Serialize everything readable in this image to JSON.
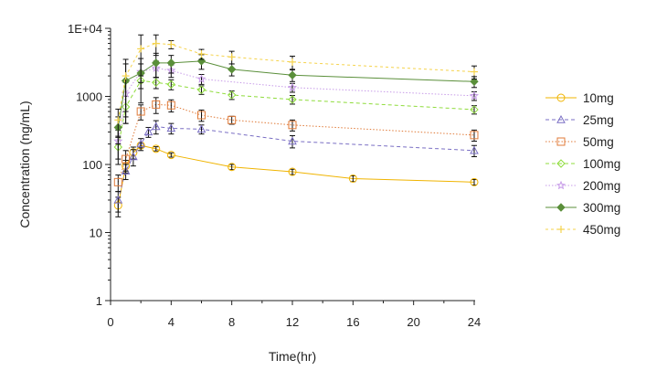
{
  "chart_data": {
    "type": "line",
    "title": "",
    "xlabel": "Time(hr)",
    "ylabel": "Concentration (ng/mL)",
    "xlim": [
      0,
      24
    ],
    "ylim": [
      1,
      10000
    ],
    "yscale": "log",
    "grid": false,
    "legend_position": "right",
    "x_ticks": [
      0,
      4,
      8,
      12,
      16,
      20,
      24
    ],
    "x_tick_labels": [
      "0",
      "4",
      "8",
      "12",
      "16",
      "20",
      "24"
    ],
    "y_ticks": [
      1,
      10,
      100,
      1000,
      10000
    ],
    "y_tick_labels": [
      "1",
      "10",
      "100",
      "1000",
      "1E+04"
    ],
    "series": [
      {
        "name": "10mg",
        "color": "#f0b400",
        "marker": "circle",
        "dash": "solid",
        "x": [
          0.5,
          1,
          1.5,
          2,
          3,
          4,
          8,
          12,
          16,
          24
        ],
        "y": [
          25,
          95,
          150,
          190,
          170,
          138,
          92,
          78,
          62,
          55
        ],
        "err": [
          8,
          20,
          30,
          15,
          12,
          10,
          8,
          7,
          6,
          5
        ]
      },
      {
        "name": "25mg",
        "color": "#7a6fc4",
        "marker": "triangle",
        "dash": "4,3",
        "x": [
          0.5,
          1,
          1.5,
          2,
          2.5,
          3,
          4,
          6,
          12,
          24
        ],
        "y": [
          30,
          80,
          130,
          200,
          300,
          360,
          340,
          330,
          220,
          160
        ],
        "err": [
          10,
          20,
          35,
          40,
          50,
          80,
          60,
          50,
          45,
          30
        ]
      },
      {
        "name": "50mg",
        "color": "#e07b39",
        "marker": "square",
        "dash": "1.5,2",
        "x": [
          0.5,
          1,
          2,
          3,
          4,
          6,
          8,
          12,
          24
        ],
        "y": [
          55,
          120,
          600,
          760,
          740,
          530,
          450,
          380,
          270
        ],
        "err": [
          15,
          40,
          150,
          200,
          150,
          100,
          60,
          70,
          50
        ]
      },
      {
        "name": "100mg",
        "color": "#8fdc3c",
        "marker": "diamond",
        "dash": "4,3",
        "x": [
          0.5,
          1,
          2,
          3,
          4,
          6,
          8,
          12,
          24
        ],
        "y": [
          180,
          700,
          1700,
          1600,
          1500,
          1250,
          1050,
          900,
          640
        ],
        "err": [
          80,
          300,
          400,
          300,
          250,
          180,
          150,
          130,
          90
        ]
      },
      {
        "name": "200mg",
        "color": "#c79be8",
        "marker": "star",
        "dash": "1.5,2",
        "x": [
          0.5,
          1,
          2,
          3,
          4,
          6,
          12,
          24
        ],
        "y": [
          220,
          1100,
          2300,
          2600,
          2400,
          1800,
          1350,
          1020
        ],
        "err": [
          100,
          500,
          700,
          700,
          500,
          300,
          200,
          150
        ]
      },
      {
        "name": "300mg",
        "color": "#5a8f3a",
        "marker": "diamond-filled",
        "dash": "solid",
        "x": [
          0.5,
          1,
          2,
          3,
          4,
          6,
          8,
          12,
          24
        ],
        "y": [
          350,
          1700,
          2200,
          3100,
          3100,
          3300,
          2500,
          2050,
          1650
        ],
        "err": [
          150,
          1300,
          1400,
          1200,
          900,
          800,
          500,
          400,
          300
        ]
      },
      {
        "name": "450mg",
        "color": "#f5d34c",
        "marker": "plus",
        "dash": "3,3",
        "x": [
          0.5,
          1,
          2,
          3,
          4,
          6,
          8,
          12,
          24
        ],
        "y": [
          450,
          2000,
          5000,
          6000,
          5800,
          4200,
          3800,
          3200,
          2300
        ],
        "err": [
          200,
          1500,
          3000,
          2000,
          800,
          700,
          800,
          700,
          500
        ]
      }
    ]
  }
}
